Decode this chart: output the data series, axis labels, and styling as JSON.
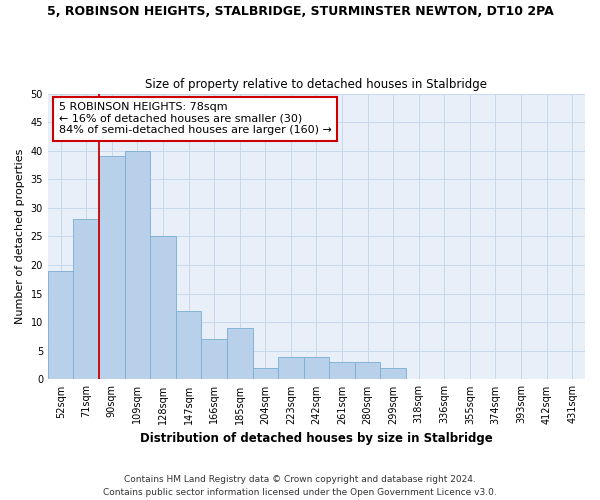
{
  "title1": "5, ROBINSON HEIGHTS, STALBRIDGE, STURMINSTER NEWTON, DT10 2PA",
  "title2": "Size of property relative to detached houses in Stalbridge",
  "xlabel": "Distribution of detached houses by size in Stalbridge",
  "ylabel": "Number of detached properties",
  "categories": [
    "52sqm",
    "71sqm",
    "90sqm",
    "109sqm",
    "128sqm",
    "147sqm",
    "166sqm",
    "185sqm",
    "204sqm",
    "223sqm",
    "242sqm",
    "261sqm",
    "280sqm",
    "299sqm",
    "318sqm",
    "336sqm",
    "355sqm",
    "374sqm",
    "393sqm",
    "412sqm",
    "431sqm"
  ],
  "values": [
    19,
    28,
    39,
    40,
    25,
    12,
    7,
    9,
    2,
    4,
    4,
    3,
    3,
    2,
    0,
    0,
    0,
    0,
    0,
    0,
    0
  ],
  "bar_color": "#b8d0ea",
  "bar_edge_color": "#7aadd4",
  "vline_x_index": 1.5,
  "vline_color": "#cc0000",
  "annotation_text": "5 ROBINSON HEIGHTS: 78sqm\n← 16% of detached houses are smaller (30)\n84% of semi-detached houses are larger (160) →",
  "annotation_box_color": "#ffffff",
  "annotation_box_edge_color": "#cc0000",
  "annotation_fontsize": 8.0,
  "ylim": [
    0,
    50
  ],
  "yticks": [
    0,
    5,
    10,
    15,
    20,
    25,
    30,
    35,
    40,
    45,
    50
  ],
  "grid_color": "#c8d8ec",
  "background_color": "#e8eff8",
  "footer1": "Contains HM Land Registry data © Crown copyright and database right 2024.",
  "footer2": "Contains public sector information licensed under the Open Government Licence v3.0.",
  "title1_fontsize": 9.0,
  "title2_fontsize": 8.5,
  "xlabel_fontsize": 8.5,
  "ylabel_fontsize": 8.0,
  "tick_fontsize": 7.0,
  "footer_fontsize": 6.5
}
